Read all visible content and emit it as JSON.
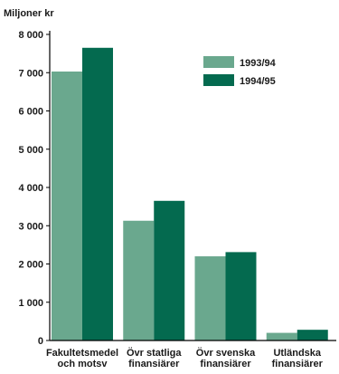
{
  "colors": {
    "series_1": "#6aa88e",
    "series_2": "#046a4f",
    "axis": "#000000"
  },
  "chart_data": {
    "type": "bar",
    "title": "",
    "ylabel": "Miljoner kr",
    "xlabel": "",
    "ylim": [
      0,
      8000
    ],
    "yticks": [
      0,
      1000,
      2000,
      3000,
      4000,
      5000,
      6000,
      7000,
      8000
    ],
    "ytick_labels": [
      "0",
      "1 000",
      "2 000",
      "3 000",
      "4 000",
      "5 000",
      "6 000",
      "7 000",
      "8 000"
    ],
    "categories": [
      [
        "Fakultetsmedel",
        "och motsv"
      ],
      [
        "Övr statliga",
        "finansiärer"
      ],
      [
        "Övr svenska",
        "finansiärer"
      ],
      [
        "Utländska",
        "finansiärer"
      ]
    ],
    "series": [
      {
        "name": "1993/94",
        "values": [
          7030,
          3130,
          2200,
          200
        ]
      },
      {
        "name": "1994/95",
        "values": [
          7650,
          3650,
          2310,
          280
        ]
      }
    ],
    "legend_position": "top-right",
    "grid": false
  }
}
